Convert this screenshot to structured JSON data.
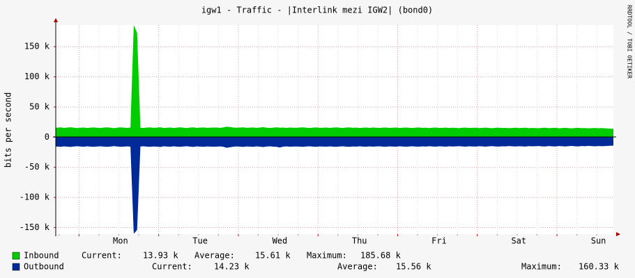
{
  "chart_data": {
    "type": "area",
    "title": "igw1 - Traffic - |Interlink mezi IGW2| (bond0)",
    "y_label": "bits per second",
    "credit": "RRDTOOL / TOBI OETIKER",
    "categories": [
      null,
      null,
      null,
      null,
      null,
      null,
      null,
      null,
      null,
      null,
      null,
      null,
      null,
      null,
      null,
      null,
      null,
      null,
      null,
      "Mon",
      null,
      null,
      null,
      null,
      null,
      null,
      null,
      null,
      null,
      null,
      null,
      null,
      null,
      null,
      null,
      null,
      null,
      null,
      null,
      null,
      null,
      null,
      null,
      "Tue",
      null,
      null,
      null,
      null,
      null,
      null,
      null,
      null,
      null,
      null,
      null,
      null,
      null,
      null,
      null,
      null,
      null,
      null,
      null,
      null,
      null,
      null,
      null,
      "Wed",
      null,
      null,
      null,
      null,
      null,
      null,
      null,
      null,
      null,
      null,
      null,
      null,
      null,
      null,
      null,
      null,
      null,
      null,
      null,
      null,
      null,
      null,
      null,
      "Thu",
      null,
      null,
      null,
      null,
      null,
      null,
      null,
      null,
      null,
      null,
      null,
      null,
      null,
      null,
      null,
      null,
      null,
      null,
      null,
      null,
      null,
      null,
      null,
      "Fri",
      null,
      null,
      null,
      null,
      null,
      null,
      null,
      null,
      null,
      null,
      null,
      null,
      null,
      null,
      null,
      null,
      null,
      null,
      null,
      null,
      null,
      null,
      null,
      "Sat",
      null,
      null,
      null,
      null,
      null,
      null,
      null,
      null,
      null,
      null,
      null,
      null,
      null,
      null,
      null,
      null,
      null,
      null,
      null,
      null,
      null,
      null,
      null,
      "Sun",
      null,
      null,
      null,
      null
    ],
    "series": [
      {
        "name": "Inbound",
        "color": "#00cc00",
        "stats": [
          "Current:",
          "13.93 k",
          "Average:",
          "15.61 k",
          "Maximum:",
          "185.68 k"
        ],
        "values": [
          15.8,
          16.2,
          15.4,
          15.9,
          16.4,
          15.6,
          15.1,
          15.7,
          16.0,
          15.3,
          15.8,
          16.1,
          15.5,
          15.2,
          15.9,
          16.3,
          15.7,
          15.0,
          15.6,
          16.2,
          15.8,
          15.4,
          15.9,
          185.7,
          173.0,
          15.6,
          15.2,
          15.9,
          16.1,
          15.5,
          15.8,
          16.4,
          15.3,
          15.7,
          16.0,
          15.2,
          15.8,
          16.2,
          15.6,
          15.1,
          15.9,
          16.3,
          15.4,
          15.8,
          16.1,
          15.5,
          15.7,
          16.0,
          15.9,
          15.4,
          16.2,
          17.4,
          16.8,
          16.0,
          15.6,
          15.9,
          16.3,
          15.5,
          15.8,
          16.1,
          15.4,
          15.9,
          16.6,
          15.7,
          15.3,
          15.8,
          16.2,
          15.6,
          15.9,
          15.4,
          16.0,
          15.7,
          15.5,
          15.9,
          16.2,
          15.6,
          15.3,
          15.8,
          16.1,
          15.5,
          15.7,
          16.0,
          15.4,
          15.8,
          16.2,
          15.6,
          15.2,
          15.9,
          16.1,
          15.5,
          15.8,
          15.3,
          15.7,
          16.0,
          15.4,
          15.9,
          15.6,
          15.2,
          15.8,
          16.0,
          15.4,
          15.7,
          15.9,
          15.3,
          15.6,
          16.0,
          15.5,
          15.2,
          15.8,
          15.9,
          15.4,
          15.7,
          15.1,
          15.6,
          15.9,
          15.3,
          15.5,
          15.8,
          15.2,
          15.6,
          15.4,
          15.0,
          15.6,
          15.8,
          15.2,
          15.5,
          15.7,
          15.1,
          15.4,
          15.8,
          15.3,
          15.0,
          15.5,
          15.7,
          15.2,
          15.4,
          14.9,
          15.3,
          15.6,
          15.1,
          15.4,
          15.7,
          15.0,
          15.3,
          15.1,
          14.8,
          15.4,
          15.6,
          14.9,
          15.2,
          15.5,
          14.8,
          15.1,
          15.5,
          15.0,
          14.7,
          15.2,
          15.4,
          14.9,
          15.1,
          14.6,
          15.0,
          15.3,
          14.8,
          15.1,
          14.7,
          14.4,
          13.9
        ]
      },
      {
        "name": "Outbound",
        "color": "#002a97",
        "stats": [
          "Current:",
          "14.23 k",
          "Average:",
          "15.56 k",
          "Maximum:",
          "160.33 k"
        ],
        "values": [
          -15.6,
          -16.0,
          -15.3,
          -15.8,
          -16.2,
          -15.5,
          -15.0,
          -15.6,
          -15.9,
          -15.2,
          -15.7,
          -16.0,
          -15.4,
          -15.1,
          -15.8,
          -16.1,
          -15.6,
          -14.9,
          -15.5,
          -16.0,
          -15.7,
          -15.3,
          -15.8,
          -160.3,
          -154.0,
          -15.5,
          -15.1,
          -15.8,
          -16.0,
          -15.4,
          -15.7,
          -16.3,
          -15.2,
          -15.6,
          -15.9,
          -15.1,
          -15.7,
          -16.1,
          -15.5,
          -15.0,
          -15.8,
          -16.2,
          -15.3,
          -15.7,
          -16.0,
          -15.4,
          -15.6,
          -15.9,
          -15.8,
          -15.3,
          -16.1,
          -17.6,
          -16.7,
          -15.9,
          -15.5,
          -15.8,
          -16.2,
          -15.4,
          -15.7,
          -16.0,
          -15.3,
          -15.8,
          -16.5,
          -15.6,
          -15.2,
          -15.7,
          -16.1,
          -17.2,
          -15.8,
          -15.3,
          -15.9,
          -15.6,
          -15.4,
          -15.8,
          -16.1,
          -15.5,
          -15.2,
          -15.7,
          -16.0,
          -15.4,
          -15.6,
          -15.9,
          -15.3,
          -15.7,
          -16.1,
          -15.5,
          -15.1,
          -15.8,
          -16.0,
          -15.4,
          -15.7,
          -15.2,
          -15.6,
          -15.9,
          -15.3,
          -15.8,
          -15.5,
          -15.1,
          -15.7,
          -15.9,
          -15.3,
          -15.6,
          -15.8,
          -15.2,
          -15.5,
          -15.9,
          -15.4,
          -15.1,
          -15.7,
          -15.8,
          -15.3,
          -15.6,
          -15.0,
          -15.5,
          -15.8,
          -15.2,
          -15.4,
          -15.7,
          -15.1,
          -15.5,
          -15.3,
          -14.9,
          -15.5,
          -15.7,
          -15.1,
          -15.4,
          -15.6,
          -15.0,
          -15.3,
          -15.7,
          -15.2,
          -14.9,
          -15.4,
          -15.6,
          -15.1,
          -15.3,
          -14.8,
          -15.2,
          -15.5,
          -15.0,
          -15.3,
          -15.6,
          -14.9,
          -15.2,
          -15.0,
          -14.7,
          -15.3,
          -15.5,
          -14.8,
          -15.1,
          -15.4,
          -14.7,
          -15.0,
          -15.4,
          -14.9,
          -14.6,
          -15.1,
          -15.3,
          -14.8,
          -15.0,
          -14.5,
          -14.9,
          -15.2,
          -14.7,
          -15.0,
          -14.8,
          -14.5,
          -14.2
        ]
      }
    ],
    "ylim": [
      -161,
      186
    ],
    "yticks": [
      {
        "value": -150,
        "label": "-150 k"
      },
      {
        "value": -100,
        "label": "-100 k"
      },
      {
        "value": -50,
        "label": "-50 k"
      },
      0,
      {
        "value": 50,
        "label": "50 k"
      },
      {
        "value": 100,
        "label": "100 k"
      },
      {
        "value": 150,
        "label": "150 k"
      }
    ],
    "grid": true
  }
}
